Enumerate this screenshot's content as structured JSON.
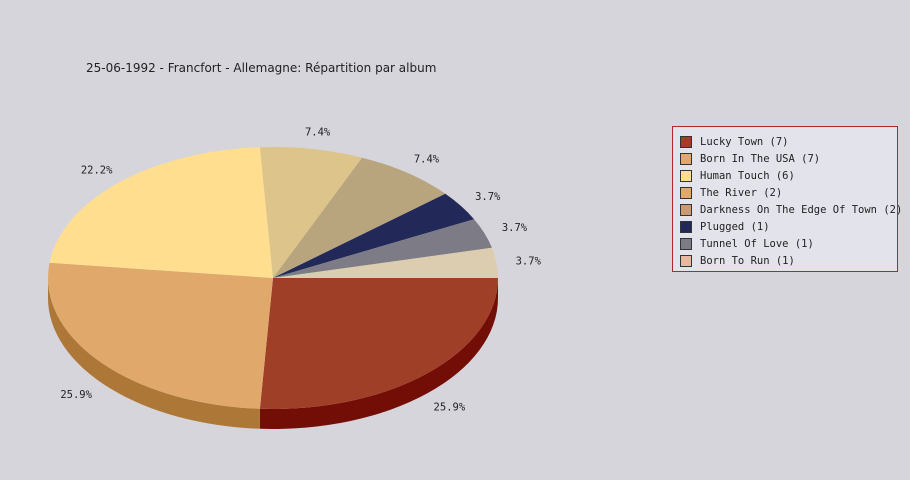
{
  "chart_data": {
    "type": "pie",
    "title": "25-06-1992 - Francfort - Allemagne:  Répartition par album",
    "legend_position": "right",
    "slices": [
      {
        "name": "Lucky Town (7)",
        "value": 7,
        "label": "25.9%",
        "color": "#a03f28",
        "side": "#730e07",
        "swatch": "#a03f28"
      },
      {
        "name": "Born In The USA (7)",
        "value": 7,
        "label": "25.9%",
        "color": "#e0a96b",
        "side": "#ad7738",
        "swatch": "#e0a96b"
      },
      {
        "name": "Human Touch (6)",
        "value": 6,
        "label": "22.2%",
        "color": "#ffdf8f",
        "side": "#cca95c",
        "swatch": "#ffdf8f"
      },
      {
        "name": "The River (2)",
        "value": 2,
        "label": "7.4%",
        "color": "#dcc48a",
        "side": "#a99157",
        "swatch": "#e0a96b"
      },
      {
        "name": "Darkness On The Edge Of Town (2)",
        "value": 2,
        "label": "7.4%",
        "color": "#b8a57e",
        "side": "#85724b",
        "swatch": "#c99a74"
      },
      {
        "name": "Plugged (1)",
        "value": 1,
        "label": "3.7%",
        "color": "#222857",
        "side": "#111530",
        "swatch": "#222857"
      },
      {
        "name": "Tunnel Of Love (1)",
        "value": 1,
        "label": "3.7%",
        "color": "#7c7b86",
        "side": "#4c4b56",
        "swatch": "#7c7b86"
      },
      {
        "name": "Born To Run (1)",
        "value": 1,
        "label": "3.7%",
        "color": "#dccdb0",
        "side": "#a99a7d",
        "swatch": "#e8b9a0"
      }
    ]
  }
}
